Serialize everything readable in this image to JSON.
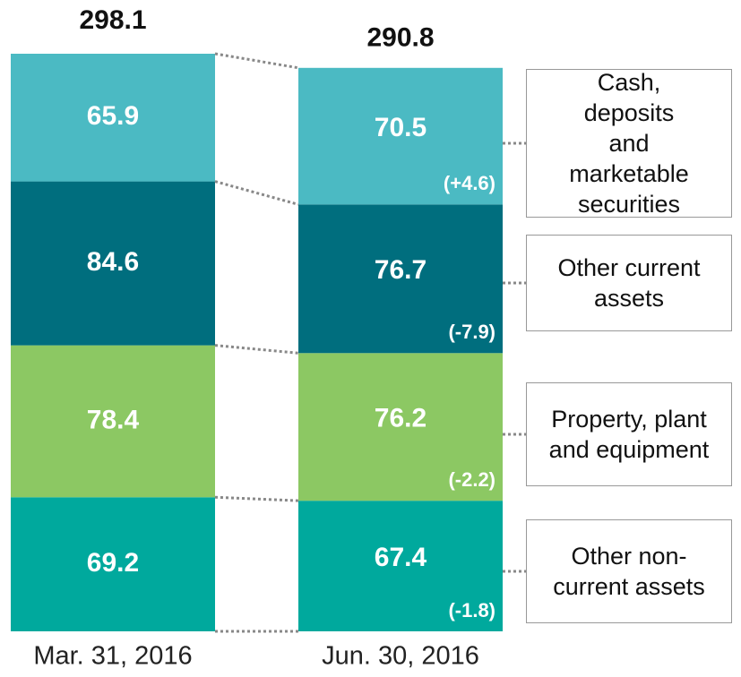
{
  "chart_data": {
    "type": "stacked-bar",
    "categories": [
      "Mar. 31, 2016",
      "Jun. 30, 2016"
    ],
    "totals": [
      298.1,
      290.8
    ],
    "series": [
      {
        "name": "Other non-current assets",
        "color": "#00a99d",
        "values": [
          69.2,
          67.4
        ],
        "change_label": "(-1.8)"
      },
      {
        "name": "Property, plant and equipment",
        "color": "#8cc863",
        "values": [
          78.4,
          76.2
        ],
        "change_label": "(-2.2)"
      },
      {
        "name": "Other current assets",
        "color": "#006e7e",
        "values": [
          84.6,
          76.7
        ],
        "change_label": "(-7.9)"
      },
      {
        "name": "Cash, deposits and marketable securities",
        "color": "#4bbac3",
        "values": [
          65.9,
          70.5
        ],
        "change_label": "(+4.6)"
      }
    ]
  }
}
